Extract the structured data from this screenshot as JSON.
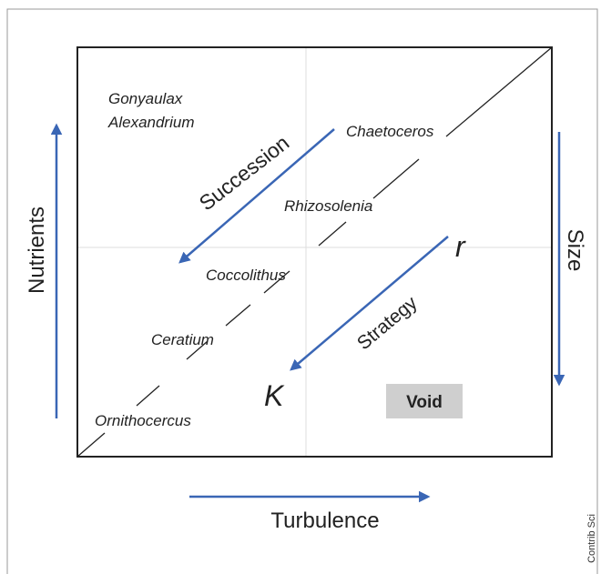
{
  "diagram": {
    "axes": {
      "vertical": "Nutrients",
      "right": "Size",
      "horizontal": "Turbulence"
    },
    "genera": [
      "Gonyaulax",
      "Alexandrium",
      "Chaetoceros",
      "Rhizosolenia",
      "Coccolithus",
      "Ceratium",
      "Ornithocercus"
    ],
    "arrows": {
      "succession": "Succession",
      "strategy": "Strategy"
    },
    "strategy_ends": {
      "start": "r",
      "end": "K"
    },
    "void": "Void",
    "credit": "Contrib Sci"
  }
}
